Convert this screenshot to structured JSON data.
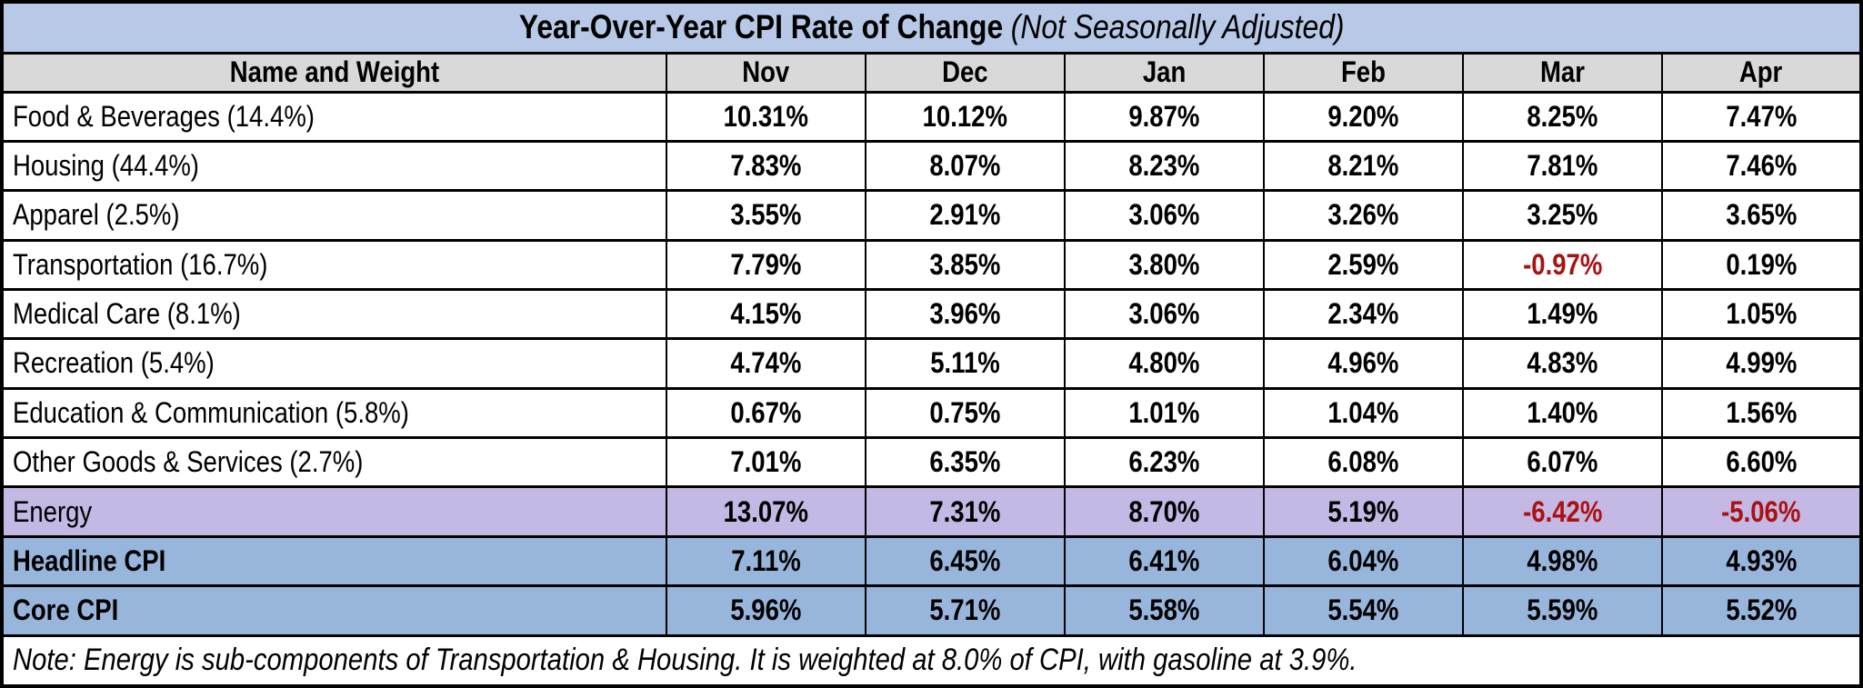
{
  "chart_data": {
    "type": "table",
    "title": "Year-Over-Year CPI Rate of Change",
    "subtitle": "(Not Seasonally Adjusted)",
    "columns": [
      "Name and Weight",
      "Nov",
      "Dec",
      "Jan",
      "Feb",
      "Mar",
      "Apr"
    ],
    "rows": [
      {
        "label": "Food & Beverages (14.4%)",
        "values": [
          "10.31%",
          "10.12%",
          "9.87%",
          "9.20%",
          "8.25%",
          "7.47%"
        ],
        "row_style": "default"
      },
      {
        "label": "Housing (44.4%)",
        "values": [
          "7.83%",
          "8.07%",
          "8.23%",
          "8.21%",
          "7.81%",
          "7.46%"
        ],
        "row_style": "default"
      },
      {
        "label": "Apparel (2.5%)",
        "values": [
          "3.55%",
          "2.91%",
          "3.06%",
          "3.26%",
          "3.25%",
          "3.65%"
        ],
        "row_style": "default"
      },
      {
        "label": "Transportation (16.7%)",
        "values": [
          "7.79%",
          "3.85%",
          "3.80%",
          "2.59%",
          "-0.97%",
          "0.19%"
        ],
        "row_style": "default"
      },
      {
        "label": "Medical Care (8.1%)",
        "values": [
          "4.15%",
          "3.96%",
          "3.06%",
          "2.34%",
          "1.49%",
          "1.05%"
        ],
        "row_style": "default"
      },
      {
        "label": "Recreation (5.4%)",
        "values": [
          "4.74%",
          "5.11%",
          "4.80%",
          "4.96%",
          "4.83%",
          "4.99%"
        ],
        "row_style": "default"
      },
      {
        "label": "Education & Communication (5.8%)",
        "values": [
          "0.67%",
          "0.75%",
          "1.01%",
          "1.04%",
          "1.40%",
          "1.56%"
        ],
        "row_style": "default"
      },
      {
        "label": "Other Goods & Services (2.7%)",
        "values": [
          "7.01%",
          "6.35%",
          "6.23%",
          "6.08%",
          "6.07%",
          "6.60%"
        ],
        "row_style": "default"
      },
      {
        "label": "Energy",
        "values": [
          "13.07%",
          "7.31%",
          "8.70%",
          "5.19%",
          "-6.42%",
          "-5.06%"
        ],
        "row_style": "energy"
      },
      {
        "label": "Headline CPI",
        "values": [
          "7.11%",
          "6.45%",
          "6.41%",
          "6.04%",
          "4.98%",
          "4.93%"
        ],
        "row_style": "summary"
      },
      {
        "label": "Core CPI",
        "values": [
          "5.96%",
          "5.71%",
          "5.58%",
          "5.54%",
          "5.59%",
          "5.52%"
        ],
        "row_style": "summary"
      }
    ],
    "note": "Note: Energy is sub-components of Transportation & Housing. It is weighted at 8.0% of CPI, with gasoline at 3.9%.",
    "layout": {
      "negative_values_colored": true,
      "legend": "none",
      "grid": "all-borders"
    },
    "colors": {
      "title_bg": "#b7c9e6",
      "header_bg": "#d9d9d9",
      "energy_row_bg": "#c4b8e4",
      "summary_row_bg": "#98b6dc",
      "negative_value": "#aa1111",
      "border": "#000000"
    }
  }
}
